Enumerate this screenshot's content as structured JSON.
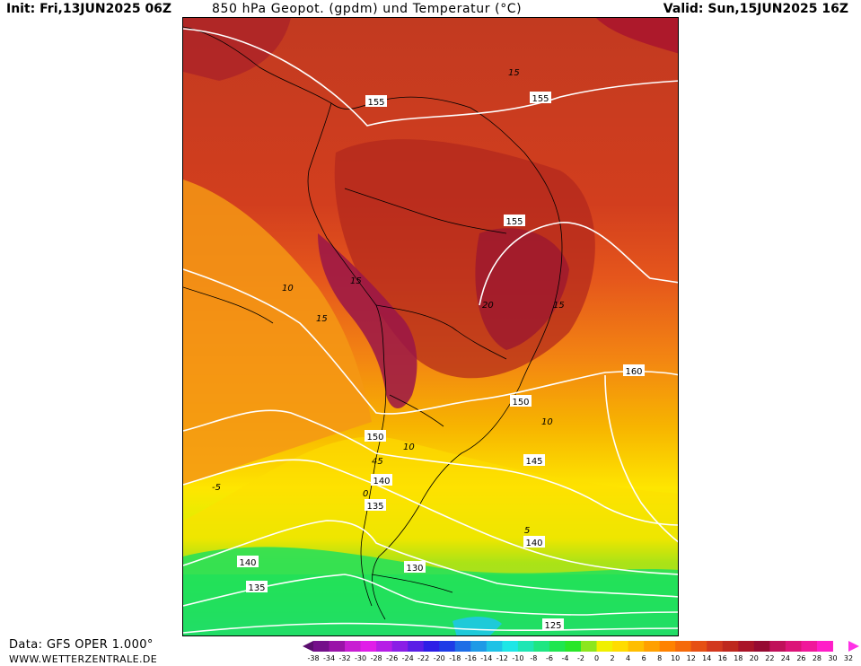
{
  "header": {
    "init": "Init: Fri,13JUN2025 06Z",
    "title": "850 hPa Geopot. (gpdm) und Temperatur (°C)",
    "valid": "Valid: Sun,15JUN2025 16Z"
  },
  "footer": {
    "data_source": "Data: GFS OPER 1.000°",
    "website": "WWW.WETTERZENTRALE.DE"
  },
  "legend": {
    "labels": [
      "-38",
      "-34",
      "-32",
      "-30",
      "-28",
      "-26",
      "-24",
      "-22",
      "-20",
      "-18",
      "-16",
      "-14",
      "-12",
      "-10",
      "-8",
      "-6",
      "-4",
      "-2",
      "0",
      "2",
      "4",
      "6",
      "8",
      "10",
      "12",
      "14",
      "16",
      "18",
      "20",
      "22",
      "24",
      "26",
      "28",
      "30",
      "32"
    ],
    "colors": [
      "#5a0d6e",
      "#740f8a",
      "#9a13a8",
      "#c81ed2",
      "#e01ee8",
      "#b61ee6",
      "#8a1ee6",
      "#5a1ee6",
      "#2d1ee6",
      "#1e3ce6",
      "#1e6ee6",
      "#1e9ae6",
      "#1ec2e6",
      "#1ee6e6",
      "#1ee6b4",
      "#1ee682",
      "#1ee650",
      "#28e628",
      "#8ce61e",
      "#f0f000",
      "#ffdc00",
      "#ffbe00",
      "#ffa000",
      "#ff8200",
      "#f56a0a",
      "#e65014",
      "#d2381e",
      "#be281e",
      "#aa1428",
      "#960a32",
      "#c0105a",
      "#dc1478",
      "#f0189a",
      "#ff1ec8",
      "#ff32e6"
    ]
  },
  "map": {
    "geopotential_labels": [
      "155",
      "155",
      "155",
      "150",
      "150",
      "145",
      "140",
      "140",
      "140",
      "135",
      "135",
      "130",
      "125",
      "160"
    ],
    "temperature_labels": [
      "15",
      "15",
      "10",
      "15",
      "20",
      "15",
      "10",
      "10",
      "5",
      "0",
      "-5",
      "45"
    ]
  },
  "colors": {
    "background": "#ffffff",
    "text": "#000000",
    "isohypse": "#ffffff",
    "coastline": "#000000"
  }
}
